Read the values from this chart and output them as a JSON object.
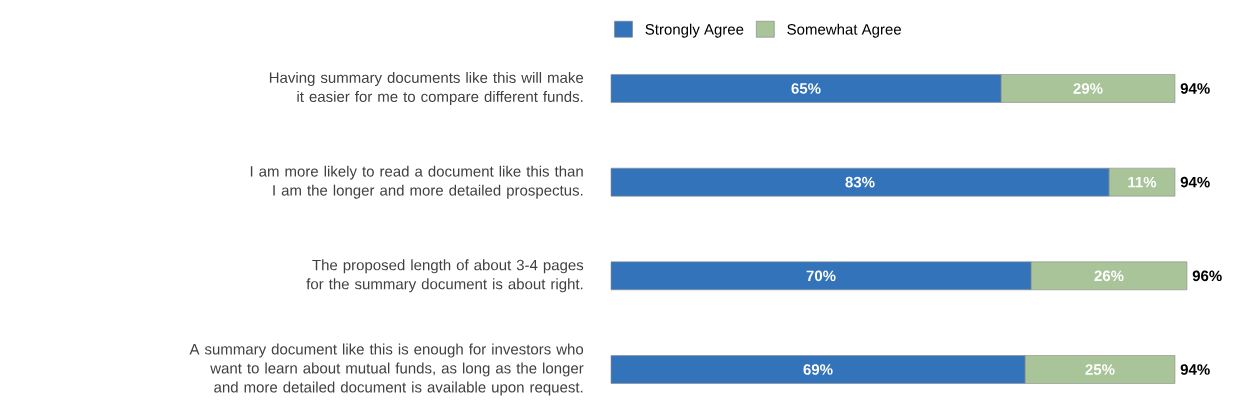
{
  "chart_data": {
    "type": "bar",
    "orientation": "horizontal",
    "stacked": true,
    "legend": "top",
    "categories": [
      "Having summary documents like this will make it easier for me to compare different funds.",
      "I am more likely to read a document like this than I am the longer and more detailed prospectus.",
      "The proposed length of about 3-4 pages for the summary document is about right.",
      "A summary document like this is enough for investors who want to learn about mutual funds, as long as the longer and more detailed document is available upon request."
    ],
    "series": [
      {
        "name": "Strongly Agree",
        "color": "#3273ba",
        "values": [
          65,
          83,
          70,
          69
        ],
        "value_labels": [
          "65%",
          "83%",
          "70%",
          "69%"
        ]
      },
      {
        "name": "Somewhat Agree",
        "color": "#a8c498",
        "values": [
          29,
          11,
          26,
          25
        ],
        "value_labels": [
          "29%",
          "11%",
          "26%",
          "25%"
        ]
      }
    ],
    "totals": [
      "94%",
      "94%",
      "96%",
      "94%"
    ]
  }
}
